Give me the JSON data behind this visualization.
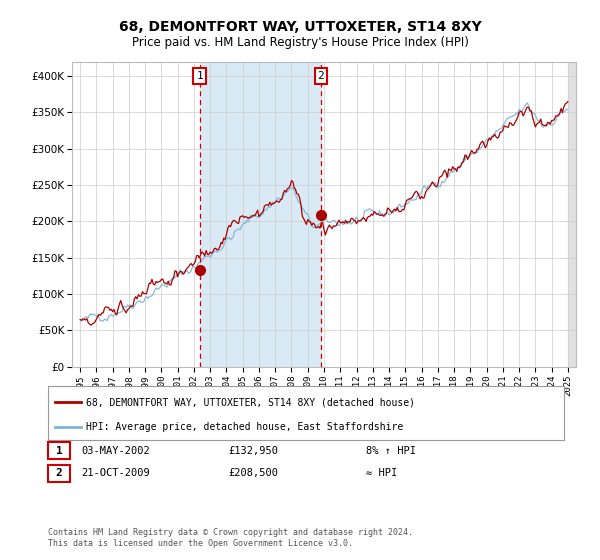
{
  "title": "68, DEMONTFORT WAY, UTTOXETER, ST14 8XY",
  "subtitle": "Price paid vs. HM Land Registry's House Price Index (HPI)",
  "legend_line1": "68, DEMONTFORT WAY, UTTOXETER, ST14 8XY (detached house)",
  "legend_line2": "HPI: Average price, detached house, East Staffordshire",
  "annotation1_date": "03-MAY-2002",
  "annotation1_price": "£132,950",
  "annotation1_hpi": "8% ↑ HPI",
  "annotation2_date": "21-OCT-2009",
  "annotation2_price": "£208,500",
  "annotation2_hpi": "≈ HPI",
  "footer": "Contains HM Land Registry data © Crown copyright and database right 2024.\nThis data is licensed under the Open Government Licence v3.0.",
  "transaction1_x": 2002.35,
  "transaction1_y": 132950,
  "transaction2_x": 2009.8,
  "transaction2_y": 208500,
  "shade_x1": 2002.35,
  "shade_x2": 2009.8,
  "ylim": [
    0,
    420000
  ],
  "xlim": [
    1994.5,
    2025.5
  ],
  "hpi_color": "#7fb3d3",
  "price_color": "#aa0000",
  "shade_color": "#daeaf5",
  "grid_color": "#cccccc",
  "background_color": "#ffffff",
  "annotation_box_color": "#cc0000",
  "dashed_line_color": "#cc0000",
  "right_hatch_color": "#e0e0e0"
}
